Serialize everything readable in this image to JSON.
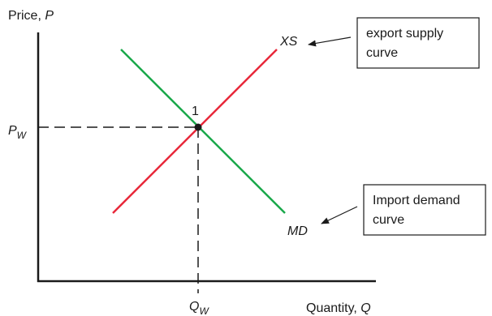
{
  "axes": {
    "y_label_text": "Price, ",
    "y_label_var": "P",
    "x_label_text": "Quantity, ",
    "x_label_var": "Q"
  },
  "equilibrium": {
    "point_label": "1",
    "price_main": "P",
    "price_sub": "W",
    "quantity_main": "Q",
    "quantity_sub": "W"
  },
  "curves": {
    "supply_label": "XS",
    "demand_label": "MD",
    "supply_color": "#e8283a",
    "demand_color": "#1aa84a"
  },
  "callouts": {
    "supply_line1": "export supply",
    "supply_line2": "curve",
    "demand_line1": "Import demand",
    "demand_line2": "curve"
  }
}
